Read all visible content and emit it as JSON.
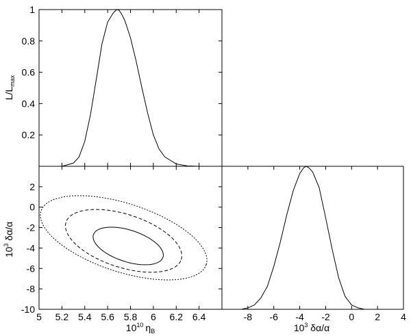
{
  "chart_data": [
    {
      "type": "line",
      "panel": "top-left",
      "ylabel_main": "L/L",
      "ylabel_sub": "max",
      "xlim": [
        5.0,
        6.6
      ],
      "ylim": [
        0.0,
        1.0
      ],
      "yticks": [
        0.2,
        0.4,
        0.6,
        0.8,
        1.0
      ],
      "ytick_labels": [
        "0.2",
        "0.4",
        "0.6",
        "0.8",
        "1"
      ],
      "series": [
        {
          "x": [
            5.0,
            5.2,
            5.3,
            5.35,
            5.4,
            5.45,
            5.5,
            5.55,
            5.6,
            5.65,
            5.68,
            5.7,
            5.72,
            5.75,
            5.8,
            5.85,
            5.9,
            5.95,
            6.0,
            6.05,
            6.1,
            6.2,
            6.3,
            6.4,
            6.6
          ],
          "y": [
            0.0,
            0.0,
            0.02,
            0.06,
            0.16,
            0.33,
            0.55,
            0.78,
            0.92,
            0.98,
            1.0,
            0.995,
            0.975,
            0.93,
            0.82,
            0.67,
            0.5,
            0.34,
            0.2,
            0.11,
            0.06,
            0.015,
            0.002,
            0.0,
            0.0
          ]
        }
      ]
    },
    {
      "type": "contour",
      "panel": "bottom-left",
      "xlabel_pre": "10",
      "xlabel_sup": "10",
      "xlabel_sym": "η",
      "xlabel_sub": "B",
      "ylabel_pre": "10",
      "ylabel_sup": "3",
      "ylabel_sym": " δα/α",
      "xlim": [
        5.0,
        6.6
      ],
      "ylim": [
        -10,
        4
      ],
      "xticks": [
        5.0,
        5.2,
        5.4,
        5.6,
        5.8,
        6.0,
        6.2,
        6.4
      ],
      "xtick_labels": [
        "5",
        "5.2",
        "5.4",
        "5.6",
        "5.8",
        "6",
        "6.2",
        "6.4"
      ],
      "yticks": [
        -10,
        -8,
        -6,
        -4,
        -2,
        0,
        2
      ],
      "ytick_labels": [
        "-10",
        "-8",
        "-6",
        "-4",
        "-2",
        "0",
        "2"
      ],
      "contours": [
        {
          "level": "1-sigma",
          "style": "solid",
          "center": [
            5.78,
            -3.8
          ],
          "rx": 0.32,
          "ry": 3.1,
          "angle_deg": -18
        },
        {
          "level": "2-sigma",
          "style": "dashed",
          "center": [
            5.74,
            -3.3
          ],
          "rx": 0.53,
          "ry": 5.2,
          "angle_deg": -18
        },
        {
          "level": "3-sigma",
          "style": "dotted",
          "center": [
            5.74,
            -3.0
          ],
          "rx": 0.76,
          "ry": 6.7,
          "angle_deg": -18
        }
      ]
    },
    {
      "type": "line",
      "panel": "bottom-right",
      "xlabel_pre": "10",
      "xlabel_sup": "3",
      "xlabel_sym": " δα/α",
      "xlim": [
        -10,
        4
      ],
      "ylim": [
        0.0,
        1.0
      ],
      "xticks": [
        -8,
        -6,
        -4,
        -2,
        0,
        2,
        4
      ],
      "xtick_labels": [
        "-8",
        "-6",
        "-4",
        "-2",
        "0",
        "2",
        "4"
      ],
      "series": [
        {
          "x": [
            -10,
            -8.5,
            -8,
            -7.5,
            -7,
            -6.5,
            -6,
            -5.5,
            -5,
            -4.5,
            -4,
            -3.7,
            -3.5,
            -3.3,
            -3,
            -2.5,
            -2,
            -1.5,
            -1,
            -0.5,
            0,
            0.5,
            1,
            2,
            4
          ],
          "y": [
            0.0,
            0.0,
            0.01,
            0.03,
            0.08,
            0.16,
            0.3,
            0.47,
            0.66,
            0.83,
            0.95,
            0.99,
            1.0,
            0.99,
            0.96,
            0.85,
            0.64,
            0.42,
            0.22,
            0.09,
            0.03,
            0.01,
            0.0,
            0.0,
            0.0
          ]
        }
      ]
    }
  ]
}
